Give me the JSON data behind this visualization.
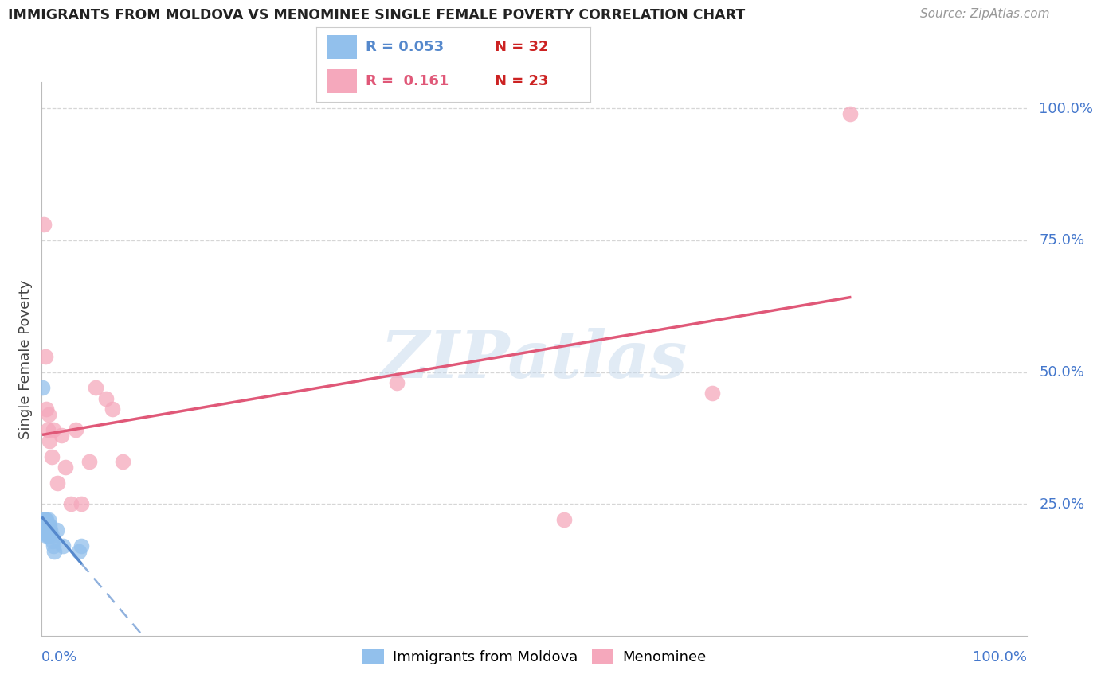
{
  "title": "IMMIGRANTS FROM MOLDOVA VS MENOMINEE SINGLE FEMALE POVERTY CORRELATION CHART",
  "source": "Source: ZipAtlas.com",
  "ylabel": "Single Female Poverty",
  "r_blue": "0.053",
  "n_blue": "32",
  "r_pink": "0.161",
  "n_pink": "23",
  "blue_color": "#92c0ec",
  "pink_color": "#f5a8bc",
  "blue_line_color": "#5588cc",
  "pink_line_color": "#e05878",
  "legend_label_blue": "Immigrants from Moldova",
  "legend_label_pink": "Menominee",
  "blue_points_x": [
    0.001,
    0.002,
    0.002,
    0.003,
    0.003,
    0.003,
    0.004,
    0.004,
    0.004,
    0.005,
    0.005,
    0.005,
    0.005,
    0.005,
    0.006,
    0.006,
    0.006,
    0.007,
    0.007,
    0.007,
    0.007,
    0.008,
    0.008,
    0.009,
    0.01,
    0.011,
    0.012,
    0.013,
    0.015,
    0.022,
    0.038,
    0.04
  ],
  "blue_points_y": [
    0.47,
    0.2,
    0.22,
    0.2,
    0.21,
    0.22,
    0.2,
    0.21,
    0.22,
    0.19,
    0.2,
    0.2,
    0.21,
    0.22,
    0.19,
    0.2,
    0.21,
    0.19,
    0.2,
    0.21,
    0.22,
    0.2,
    0.21,
    0.2,
    0.19,
    0.18,
    0.17,
    0.16,
    0.2,
    0.17,
    0.16,
    0.17
  ],
  "pink_points_x": [
    0.002,
    0.004,
    0.005,
    0.006,
    0.007,
    0.008,
    0.01,
    0.012,
    0.016,
    0.02,
    0.024,
    0.03,
    0.035,
    0.04,
    0.048,
    0.055,
    0.065,
    0.072,
    0.082,
    0.36,
    0.53,
    0.68,
    0.82
  ],
  "pink_points_y": [
    0.78,
    0.53,
    0.43,
    0.39,
    0.42,
    0.37,
    0.34,
    0.39,
    0.29,
    0.38,
    0.32,
    0.25,
    0.39,
    0.25,
    0.33,
    0.47,
    0.45,
    0.43,
    0.33,
    0.48,
    0.22,
    0.46,
    0.99
  ],
  "xlim": [
    0.0,
    1.0
  ],
  "ylim": [
    0.0,
    1.05
  ],
  "ytick_positions": [
    0.25,
    0.5,
    0.75,
    1.0
  ],
  "ytick_labels": [
    "25.0%",
    "50.0%",
    "75.0%",
    "100.0%"
  ],
  "grid_color": "#cccccc",
  "watermark_text": "ZIPatlas",
  "blue_line_x_start": 0.001,
  "blue_line_x_solid_end": 0.04,
  "pink_line_x_start": 0.002,
  "pink_line_x_end": 0.82
}
